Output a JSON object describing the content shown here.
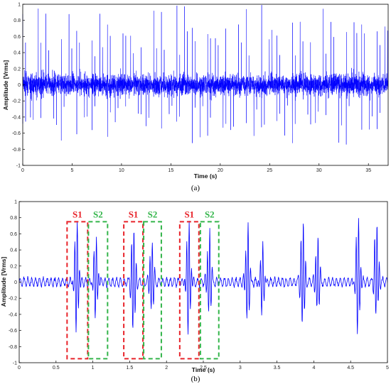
{
  "chart_data": [
    {
      "type": "line",
      "caption": "(a)",
      "xlabel": "Time (s)",
      "ylabel": "Amplitude [Vrms]",
      "xlim": [
        0,
        37
      ],
      "ylim": [
        -1,
        1
      ],
      "xticks": [
        0,
        5,
        10,
        15,
        20,
        25,
        30,
        35
      ],
      "yticks": [
        -1,
        -0.8,
        -0.6,
        -0.4,
        -0.2,
        0,
        0.2,
        0.4,
        0.6,
        0.8,
        1
      ],
      "grid": false,
      "color": "#0000ff",
      "signal": {
        "description": "dense heart sound recording, noise band about ±0.2",
        "heartbeat_period_s": 0.78,
        "s1_peak_range": [
          0.55,
          1.0
        ],
        "s1_trough_range": [
          -0.8,
          -0.3
        ],
        "noise_amplitude": 0.22
      }
    },
    {
      "type": "line",
      "caption": "(b)",
      "xlabel": "Time (s)",
      "ylabel": "Amplitude [Vrms]",
      "xlim": [
        0,
        5
      ],
      "ylim": [
        -1,
        1
      ],
      "xticks": [
        0,
        0.5,
        1,
        1.5,
        2,
        2.5,
        3,
        3.5,
        4,
        4.5,
        5
      ],
      "yticks": [
        -1,
        -0.8,
        -0.6,
        -0.4,
        -0.2,
        0,
        0.2,
        0.4,
        0.6,
        0.8,
        1
      ],
      "grid": false,
      "color": "#0000ff",
      "events": [
        {
          "type": "S1",
          "t": 0.78,
          "peak": 0.78,
          "trough": -0.6
        },
        {
          "type": "S2",
          "t": 1.04,
          "peak": 0.58,
          "trough": -0.42
        },
        {
          "type": "S1",
          "t": 1.55,
          "peak": 0.75,
          "trough": -0.65
        },
        {
          "type": "S2",
          "t": 1.8,
          "peak": 0.55,
          "trough": -0.4
        },
        {
          "type": "S1",
          "t": 2.3,
          "peak": 0.78,
          "trough": -0.62
        },
        {
          "type": "S2",
          "t": 2.58,
          "peak": 0.68,
          "trough": -0.42
        },
        {
          "type": "S1",
          "t": 3.1,
          "peak": 0.74,
          "trough": -0.5
        },
        {
          "type": "S2",
          "t": 3.3,
          "peak": 0.48,
          "trough": -0.38
        },
        {
          "type": "S1",
          "t": 3.85,
          "peak": 0.85,
          "trough": -0.58
        },
        {
          "type": "S2",
          "t": 4.05,
          "peak": 0.6,
          "trough": -0.38
        },
        {
          "type": "S1",
          "t": 4.6,
          "peak": 0.85,
          "trough": -0.65
        },
        {
          "type": "S2",
          "t": 4.85,
          "peak": 0.82,
          "trough": -0.45
        }
      ],
      "annotations": [
        {
          "label": "S1",
          "color": "#e8232a",
          "x0": 0.65,
          "x1": 0.93,
          "y0": -0.95,
          "y1": 0.75
        },
        {
          "label": "S2",
          "color": "#33b54a",
          "x0": 0.94,
          "x1": 1.2,
          "y0": -0.95,
          "y1": 0.75
        },
        {
          "label": "S1",
          "color": "#e8232a",
          "x0": 1.42,
          "x1": 1.68,
          "y0": -0.95,
          "y1": 0.75
        },
        {
          "label": "S2",
          "color": "#33b54a",
          "x0": 1.69,
          "x1": 1.93,
          "y0": -0.95,
          "y1": 0.75
        },
        {
          "label": "S1",
          "color": "#e8232a",
          "x0": 2.18,
          "x1": 2.44,
          "y0": -0.95,
          "y1": 0.75
        },
        {
          "label": "S2",
          "color": "#33b54a",
          "x0": 2.46,
          "x1": 2.71,
          "y0": -0.95,
          "y1": 0.75
        }
      ]
    }
  ]
}
